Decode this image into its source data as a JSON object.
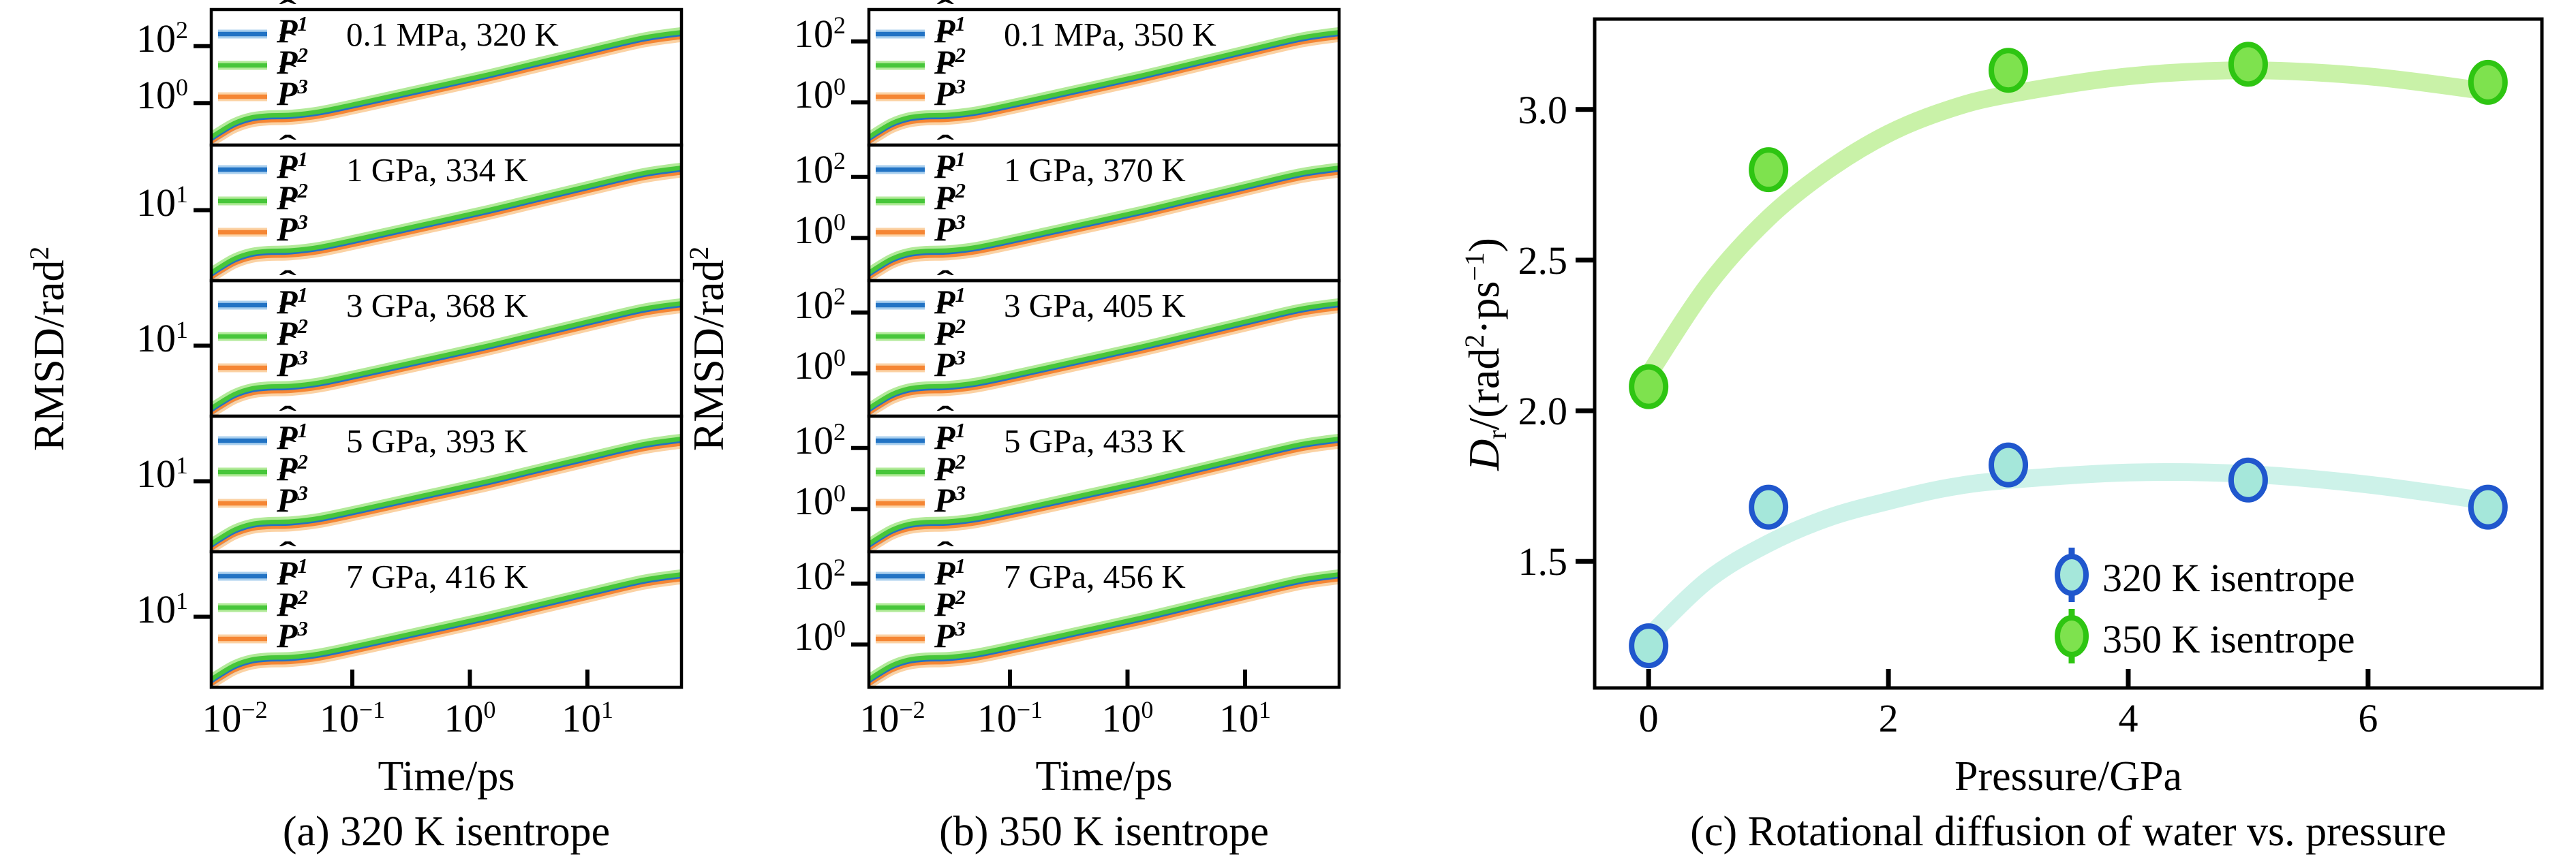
{
  "colors": {
    "axis": "#000000",
    "line_p1_blue": "#2273c4",
    "halo_p1_blue": "#a9cfee",
    "line_p2_green": "#47c63a",
    "halo_p2_green": "#b2ea99",
    "line_p3_orange": "#f58634",
    "halo_p3_orange": "#fbd2a4",
    "marker_320_fill": "#a5e7da",
    "marker_320_edge": "#2057cd",
    "trend_320": "#cdf2e9",
    "marker_350_fill": "#7ee24e",
    "marker_350_edge": "#2ec512",
    "trend_350": "#c9f2a8"
  },
  "panel_a": {
    "caption": "(a) 320 K isentrope",
    "xlabel": "Time/ps",
    "ylabel_base": "RMSD/rad",
    "ylabel_sup": "2",
    "x_ticks": [
      {
        "base": "10",
        "sup": "−2",
        "frac": 0.05
      },
      {
        "base": "10",
        "sup": "−1",
        "frac": 0.3
      },
      {
        "base": "10",
        "sup": "0",
        "frac": 0.55
      },
      {
        "base": "10",
        "sup": "1",
        "frac": 0.8
      }
    ],
    "legend": [
      {
        "base": "P",
        "sup": "1"
      },
      {
        "base": "P",
        "sup": "2"
      },
      {
        "base": "P",
        "sup": "3"
      }
    ],
    "subplots": [
      {
        "condition": "0.1 MPa, 320 K",
        "y_ticks": [
          {
            "base": "10",
            "sup": "2",
            "frac": 0.27
          },
          {
            "base": "10",
            "sup": "0",
            "frac": 0.69
          }
        ]
      },
      {
        "condition": "1 GPa, 334 K",
        "y_ticks": [
          {
            "base": "10",
            "sup": "1",
            "frac": 0.48
          }
        ]
      },
      {
        "condition": "3 GPa, 368 K",
        "y_ticks": [
          {
            "base": "10",
            "sup": "1",
            "frac": 0.48
          }
        ]
      },
      {
        "condition": "5 GPa, 393 K",
        "y_ticks": [
          {
            "base": "10",
            "sup": "1",
            "frac": 0.48
          }
        ]
      },
      {
        "condition": "7 GPa, 416 K",
        "y_ticks": [
          {
            "base": "10",
            "sup": "1",
            "frac": 0.48
          }
        ]
      }
    ]
  },
  "panel_b": {
    "caption": "(b) 350 K isentrope",
    "xlabel": "Time/ps",
    "ylabel_base": "RMSD/rad",
    "ylabel_sup": "2",
    "x_ticks": [
      {
        "base": "10",
        "sup": "−2",
        "frac": 0.05
      },
      {
        "base": "10",
        "sup": "−1",
        "frac": 0.3
      },
      {
        "base": "10",
        "sup": "0",
        "frac": 0.55
      },
      {
        "base": "10",
        "sup": "1",
        "frac": 0.8
      }
    ],
    "legend": [
      {
        "base": "P",
        "sup": "1"
      },
      {
        "base": "P",
        "sup": "2"
      },
      {
        "base": "P",
        "sup": "3"
      }
    ],
    "subplots": [
      {
        "condition": "0.1 MPa, 350 K",
        "y_ticks": [
          {
            "base": "10",
            "sup": "2",
            "frac": 0.235
          },
          {
            "base": "10",
            "sup": "0",
            "frac": 0.685
          }
        ]
      },
      {
        "condition": "1 GPa, 370 K",
        "y_ticks": [
          {
            "base": "10",
            "sup": "2",
            "frac": 0.235
          },
          {
            "base": "10",
            "sup": "0",
            "frac": 0.685
          }
        ]
      },
      {
        "condition": "3 GPa, 405 K",
        "y_ticks": [
          {
            "base": "10",
            "sup": "2",
            "frac": 0.235
          },
          {
            "base": "10",
            "sup": "0",
            "frac": 0.685
          }
        ]
      },
      {
        "condition": "5 GPa, 433 K",
        "y_ticks": [
          {
            "base": "10",
            "sup": "2",
            "frac": 0.235
          },
          {
            "base": "10",
            "sup": "0",
            "frac": 0.685
          }
        ]
      },
      {
        "condition": "7 GPa, 456 K",
        "y_ticks": [
          {
            "base": "10",
            "sup": "2",
            "frac": 0.235
          },
          {
            "base": "10",
            "sup": "0",
            "frac": 0.685
          }
        ]
      }
    ]
  },
  "panel_c": {
    "caption": "(c) Rotational diffusion of water vs. pressure",
    "xlabel": "Pressure/GPa",
    "ylabel": {
      "d": "D",
      "sub": "r",
      "mid": "/(rad",
      "sup1": "2",
      "dot": "·ps",
      "sup2": "−1",
      "end": ")"
    },
    "x_tick_labels": [
      "0",
      "2",
      "4",
      "6"
    ],
    "y_tick_labels": [
      "3.0",
      "2.5",
      "2.0",
      "1.5"
    ],
    "legend": [
      "320 K isentrope",
      "350 K isentrope"
    ]
  },
  "chart_data": [
    {
      "id": "a",
      "type": "line",
      "title": "(a) 320 K isentrope",
      "xlabel": "Time/ps",
      "ylabel": "RMSD/rad²",
      "xscale": "log",
      "yscale": "log",
      "x_ticks_ps": [
        0.01,
        0.1,
        1,
        10
      ],
      "series_labels": [
        "P̂¹",
        "P̂²",
        "P̂³"
      ],
      "subplot_conditions": [
        "0.1 MPa, 320 K",
        "1 GPa, 334 K",
        "3 GPa, 368 K",
        "5 GPa, 393 K",
        "7 GPa, 416 K"
      ],
      "y_tick_values_per_subplot": [
        [
          100,
          1
        ],
        [
          10
        ],
        [
          10
        ],
        [
          10
        ],
        [
          10
        ]
      ],
      "curve_shape_frac": {
        "x": [
          0,
          0.02,
          0.05,
          0.085,
          0.12,
          0.17,
          0.23,
          0.32,
          0.45,
          0.58,
          0.7,
          0.82,
          0.92,
          1.0
        ],
        "y": [
          0.045,
          0.09,
          0.15,
          0.19,
          0.205,
          0.21,
          0.235,
          0.3,
          0.4,
          0.5,
          0.6,
          0.7,
          0.78,
          0.82
        ]
      },
      "note": "Each subplot shows three nearly overlapping log-log RMSD curves (P1 blue, P2 green slightly above, P3 orange slightly below) rising from ~0.2 rad² at 0.01 ps with a shoulder near 0.03–0.1 ps, then power-law growth to the panel top-right at ~50 ps."
    },
    {
      "id": "b",
      "type": "line",
      "title": "(b) 350 K isentrope",
      "xlabel": "Time/ps",
      "ylabel": "RMSD/rad²",
      "xscale": "log",
      "yscale": "log",
      "x_ticks_ps": [
        0.01,
        0.1,
        1,
        10
      ],
      "series_labels": [
        "P̂¹",
        "P̂²",
        "P̂³"
      ],
      "subplot_conditions": [
        "0.1 MPa, 350 K",
        "1 GPa, 370 K",
        "3 GPa, 405 K",
        "5 GPa, 433 K",
        "7 GPa, 456 K"
      ],
      "y_tick_values_per_subplot": [
        [
          100,
          1
        ],
        [
          100,
          1
        ],
        [
          100,
          1
        ],
        [
          100,
          1
        ],
        [
          100,
          1
        ]
      ],
      "curve_shape_frac": {
        "x": [
          0,
          0.02,
          0.05,
          0.085,
          0.12,
          0.17,
          0.23,
          0.32,
          0.45,
          0.58,
          0.7,
          0.82,
          0.92,
          1.0
        ],
        "y": [
          0.045,
          0.09,
          0.15,
          0.19,
          0.205,
          0.21,
          0.235,
          0.3,
          0.4,
          0.5,
          0.6,
          0.7,
          0.78,
          0.82
        ]
      },
      "note": "Same structure as panel (a); curves reach ~100 rad² by ~50 ps."
    },
    {
      "id": "c",
      "type": "scatter",
      "title": "(c) Rotational diffusion of water vs. pressure",
      "xlabel": "Pressure/GPa",
      "ylabel": "Dr/(rad²·ps⁻¹)",
      "xlim": [
        -0.45,
        7.45
      ],
      "ylim": [
        1.08,
        3.3
      ],
      "xticks": [
        0,
        2,
        4,
        6
      ],
      "yticks": [
        1.5,
        2.0,
        2.5,
        3.0
      ],
      "legend_position": "lower right",
      "series": [
        {
          "name": "320 K isentrope",
          "pressure_gpa": [
            0,
            1,
            3,
            5,
            7
          ],
          "dr": [
            1.22,
            1.68,
            1.82,
            1.77,
            1.68
          ],
          "trend_x": [
            0,
            0.5,
            1,
            1.5,
            2,
            2.5,
            3,
            4,
            5,
            6,
            7
          ],
          "trend_y": [
            1.25,
            1.44,
            1.56,
            1.645,
            1.7,
            1.745,
            1.77,
            1.795,
            1.79,
            1.755,
            1.7
          ]
        },
        {
          "name": "350 K isentrope",
          "pressure_gpa": [
            0,
            1,
            3,
            5,
            7
          ],
          "dr": [
            2.08,
            2.8,
            3.13,
            3.15,
            3.09
          ],
          "trend_x": [
            0,
            0.5,
            1,
            1.5,
            2,
            2.5,
            3,
            4,
            5,
            6,
            7
          ],
          "trend_y": [
            2.12,
            2.42,
            2.64,
            2.8,
            2.92,
            3.0,
            3.05,
            3.11,
            3.13,
            3.11,
            3.06
          ]
        }
      ]
    }
  ]
}
